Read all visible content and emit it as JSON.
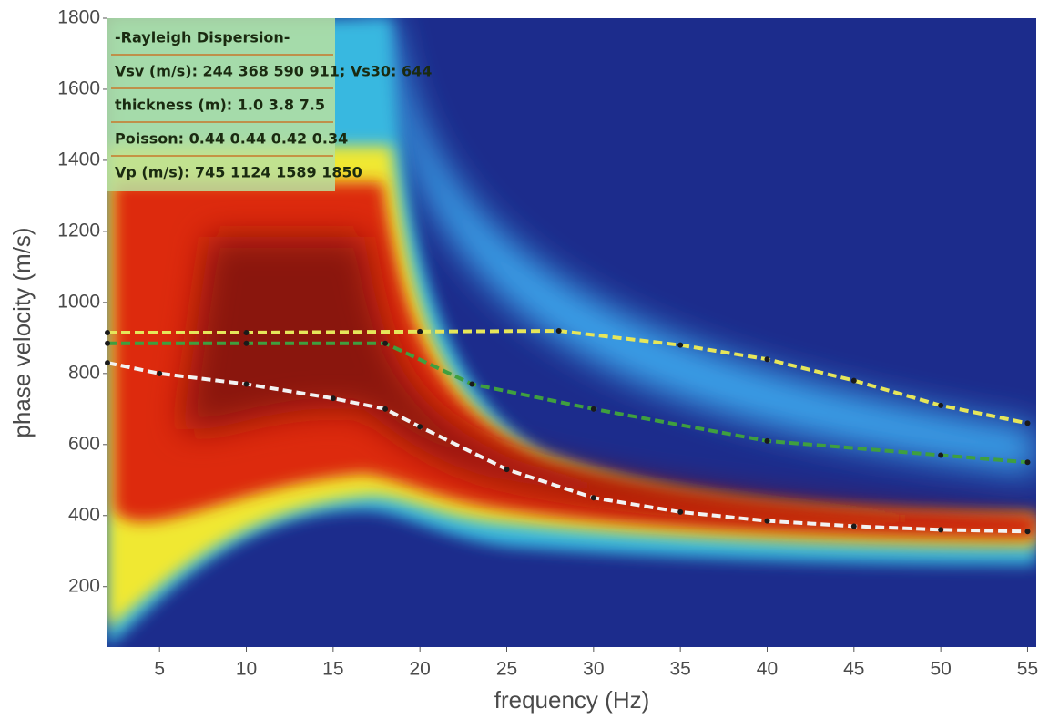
{
  "chart_data": {
    "type": "line",
    "x_label": "frequency (Hz)",
    "y_label": "phase velocity (m/s)",
    "xlim": [
      2,
      55.5
    ],
    "ylim": [
      30,
      1800
    ],
    "xticks": [
      5,
      10,
      15,
      20,
      25,
      30,
      35,
      40,
      45,
      50,
      55
    ],
    "yticks": [
      200,
      400,
      600,
      800,
      1000,
      1200,
      1400,
      1600,
      1800
    ],
    "annotations": [
      "-Rayleigh Dispersion-",
      "Vsv (m/s): 244  368  590  911; Vs30: 644",
      "thickness (m): 1.0    3.8    7.5",
      "Poisson: 0.44  0.44  0.42  0.34",
      "Vp (m/s): 745 1124 1589 1850"
    ],
    "series": [
      {
        "color": "#f2f2f2",
        "x": [
          2,
          5,
          10,
          15,
          18,
          20,
          25,
          30,
          35,
          40,
          45,
          50,
          55
        ],
        "values": [
          830,
          800,
          770,
          730,
          700,
          650,
          530,
          450,
          410,
          385,
          370,
          360,
          355
        ]
      },
      {
        "color": "#3f9f3f",
        "x": [
          2,
          10,
          18,
          23,
          30,
          40,
          50,
          55
        ],
        "values": [
          885,
          885,
          885,
          770,
          700,
          610,
          570,
          550
        ]
      },
      {
        "color": "#e6e65a",
        "x": [
          2,
          10,
          20,
          28,
          35,
          40,
          45,
          50,
          55
        ],
        "values": [
          915,
          915,
          918,
          920,
          880,
          840,
          780,
          710,
          660
        ]
      }
    ]
  }
}
